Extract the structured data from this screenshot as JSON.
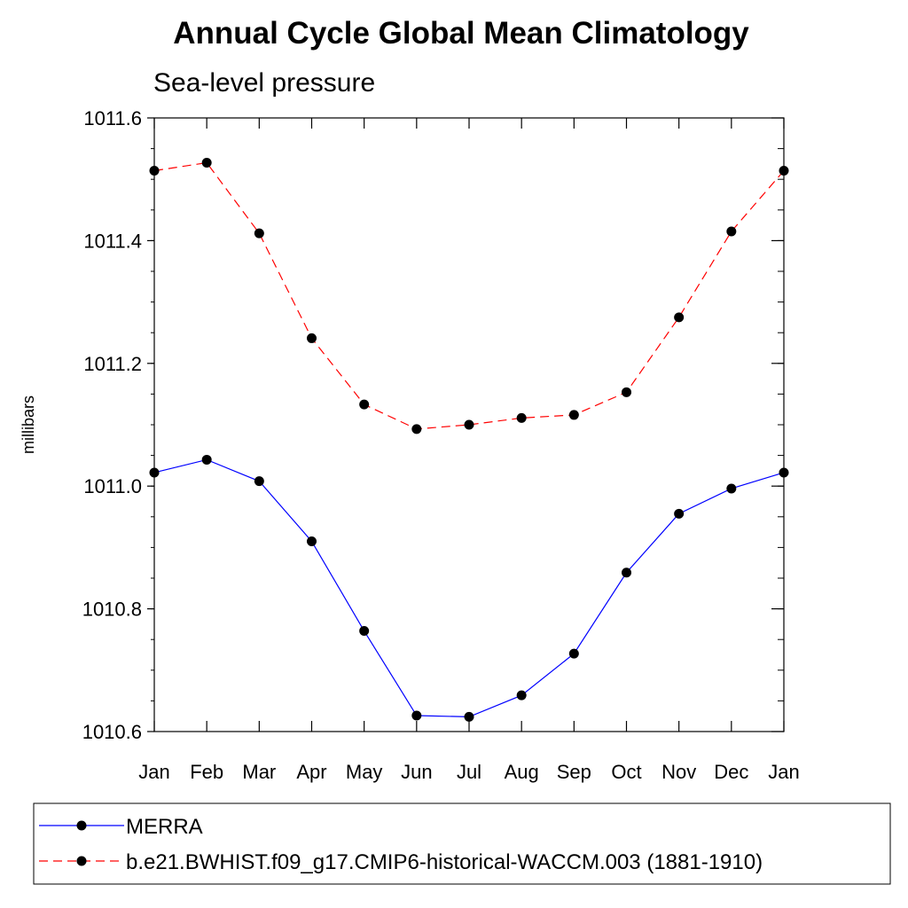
{
  "chart_data": {
    "type": "line",
    "title": "Annual Cycle Global Mean Climatology",
    "subtitle": "Sea-level pressure",
    "xlabel": "",
    "ylabel": "millibars",
    "categories": [
      "Jan",
      "Feb",
      "Mar",
      "Apr",
      "May",
      "Jun",
      "Jul",
      "Aug",
      "Sep",
      "Oct",
      "Nov",
      "Dec",
      "Jan"
    ],
    "ylim": [
      1010.6,
      1011.6
    ],
    "yticks": [
      "1010.6",
      "1010.8",
      "1011.0",
      "1011.2",
      "1011.4",
      "1011.6"
    ],
    "ytick_values": [
      1010.6,
      1010.8,
      1011.0,
      1011.2,
      1011.4,
      1011.6
    ],
    "grid": false,
    "legend_position": "bottom",
    "series": [
      {
        "name": "MERRA",
        "color": "#0000ff",
        "dashed": false,
        "values": [
          1011.022,
          1011.043,
          1011.008,
          1010.91,
          1010.764,
          1010.626,
          1010.624,
          1010.659,
          1010.727,
          1010.859,
          1010.955,
          1010.996,
          1011.022
        ]
      },
      {
        "name": "b.e21.BWHIST.f09_g17.CMIP6-historical-WACCM.003 (1881-1910)",
        "color": "#ff0000",
        "dashed": true,
        "values": [
          1011.514,
          1011.527,
          1011.412,
          1011.241,
          1011.133,
          1011.093,
          1011.1,
          1011.111,
          1011.116,
          1011.153,
          1011.275,
          1011.415,
          1011.514
        ]
      }
    ]
  }
}
